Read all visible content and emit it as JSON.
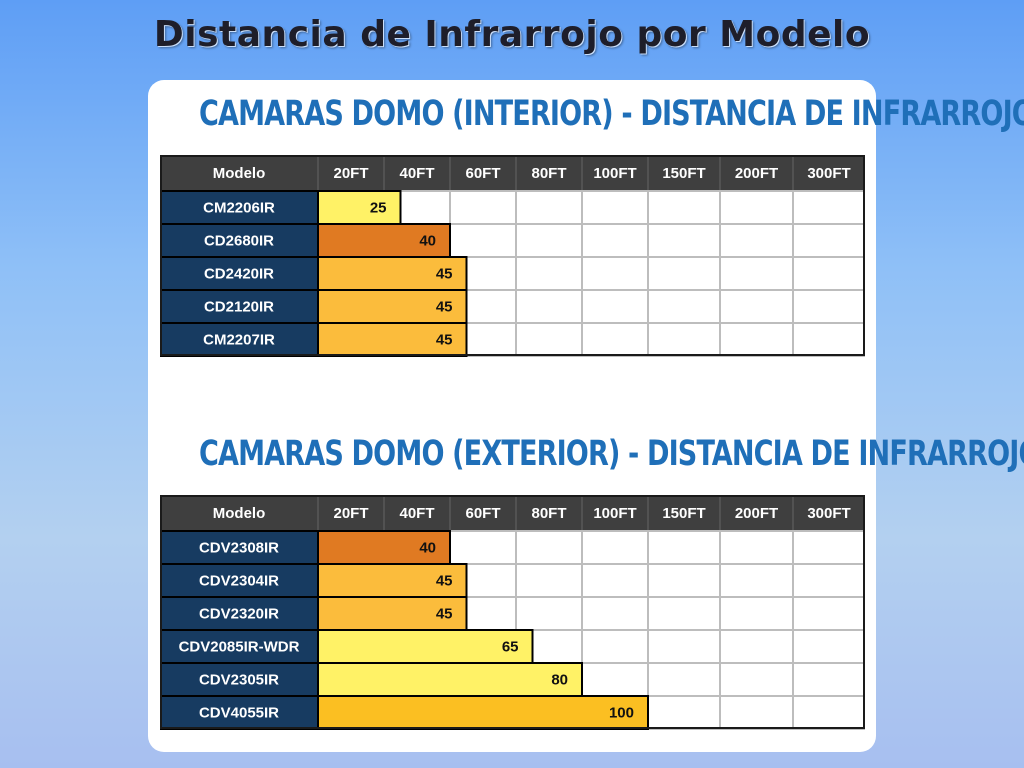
{
  "page": {
    "title": "Distancia de Infrarrojo por Modelo"
  },
  "colors": {
    "header_bg": "#3f3f3f",
    "model_bg": "#173b61",
    "bar_pale": "#fff266",
    "bar_dark_orange": "#e07a22",
    "bar_orange": "#fbbc3c",
    "bar_gold": "#fbbf22",
    "grid": "#bdbdbd"
  },
  "chart_data": [
    {
      "type": "bar",
      "orientation": "horizontal",
      "title": "CAMARAS DOMO (INTERIOR) - DISTANCIA DE INFRARROJO",
      "header_label": "Modelo",
      "columns": [
        "20FT",
        "40FT",
        "60FT",
        "80FT",
        "100FT",
        "150FT",
        "200FT",
        "300FT"
      ],
      "column_values": [
        20,
        40,
        60,
        80,
        100,
        150,
        200,
        300
      ],
      "categories": [
        "CM2206IR",
        "CD2680IR",
        "CD2420IR",
        "CD2120IR",
        "CM2207IR"
      ],
      "values": [
        25,
        40,
        45,
        45,
        45
      ],
      "bar_colors": [
        "#fff266",
        "#e07a22",
        "#fbbc3c",
        "#fbbc3c",
        "#fbbc3c"
      ]
    },
    {
      "type": "bar",
      "orientation": "horizontal",
      "title": "CAMARAS DOMO (EXTERIOR) - DISTANCIA DE INFRARROJO",
      "header_label": "Modelo",
      "columns": [
        "20FT",
        "40FT",
        "60FT",
        "80FT",
        "100FT",
        "150FT",
        "200FT",
        "300FT"
      ],
      "column_values": [
        20,
        40,
        60,
        80,
        100,
        150,
        200,
        300
      ],
      "categories": [
        "CDV2308IR",
        "CDV2304IR",
        "CDV2320IR",
        "CDV2085IR-WDR",
        "CDV2305IR",
        "CDV4055IR"
      ],
      "values": [
        40,
        45,
        45,
        65,
        80,
        100
      ],
      "bar_colors": [
        "#e07a22",
        "#fbbc3c",
        "#fbbc3c",
        "#fff266",
        "#fff266",
        "#fbbf22"
      ]
    }
  ]
}
